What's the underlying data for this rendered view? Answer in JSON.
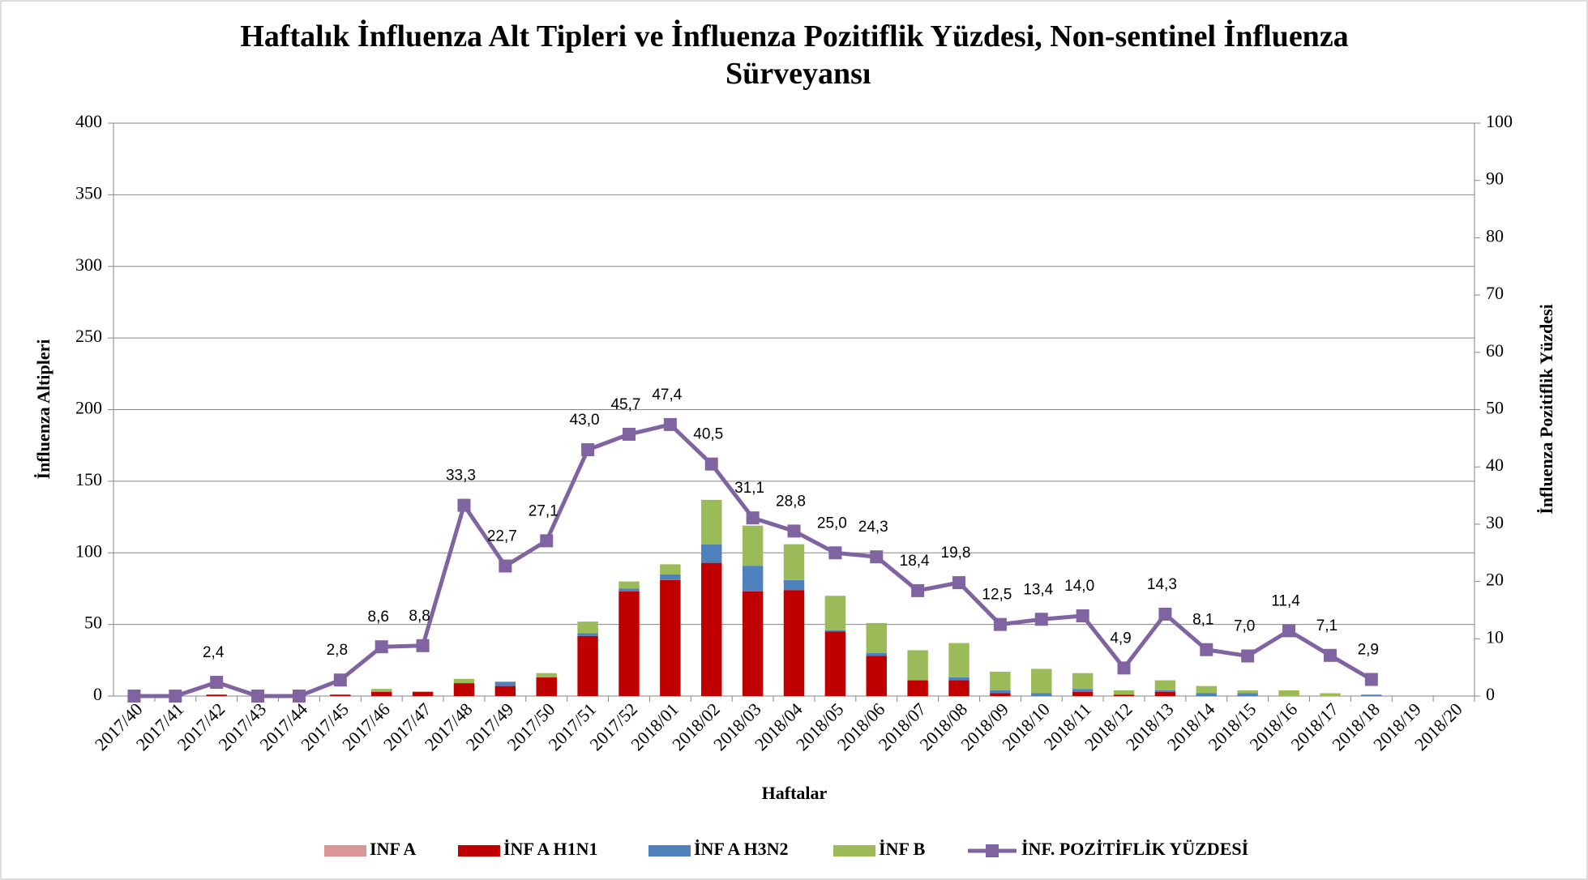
{
  "chart_data": {
    "type": "bar",
    "stacked": true,
    "title": "Haftalık İnfluenza Alt Tipleri ve İnfluenza Pozitiflik Yüzdesi, Non-sentinel İnfluenza Sürveyansı",
    "x_label": "Haftalar",
    "y_label": "İnfluenza Altipleri",
    "y2_label": "İnfluenza Pozitiflik Yüzdesi",
    "categories": [
      "2017/40",
      "2017/41",
      "2017/42",
      "2017/43",
      "2017/44",
      "2017/45",
      "2017/46",
      "2017/47",
      "2017/48",
      "2017/49",
      "2017/50",
      "2017/51",
      "2017/52",
      "2018/01",
      "2018/02",
      "2018/03",
      "2018/04",
      "2018/05",
      "2018/06",
      "2018/07",
      "2018/08",
      "2018/09",
      "2018/10",
      "2018/11",
      "2018/12",
      "2018/13",
      "2018/14",
      "2018/15",
      "2018/16",
      "2018/17",
      "2018/18",
      "2018/19",
      "2018/20"
    ],
    "series": [
      {
        "name": "INF A",
        "color": "#d99694",
        "values": [
          0,
          0,
          0,
          0,
          0,
          0,
          0,
          0,
          0,
          0,
          0,
          0,
          0,
          0,
          0,
          0,
          0,
          0,
          0,
          0,
          0,
          0,
          0,
          0,
          0,
          0,
          0,
          0,
          0,
          0,
          0,
          0,
          0
        ]
      },
      {
        "name": "İNF A H1N1",
        "color": "#c00000",
        "values": [
          0,
          0,
          1,
          0,
          0,
          1,
          3,
          3,
          9,
          7,
          13,
          42,
          73,
          81,
          93,
          73,
          74,
          45,
          28,
          11,
          11,
          2,
          0,
          3,
          1,
          3,
          0,
          0,
          0,
          0,
          0,
          0,
          0
        ]
      },
      {
        "name": "İNF A H3N2",
        "color": "#4f81bd",
        "values": [
          0,
          0,
          0,
          0,
          0,
          0,
          0,
          0,
          0,
          3,
          0,
          2,
          2,
          4,
          13,
          18,
          7,
          1,
          2,
          0,
          2,
          2,
          2,
          2,
          0,
          1,
          2,
          2,
          0,
          0,
          1,
          0,
          0
        ]
      },
      {
        "name": "İNF B",
        "color": "#9bbb59",
        "values": [
          0,
          0,
          0,
          0,
          0,
          0,
          2,
          0,
          3,
          0,
          3,
          8,
          5,
          7,
          31,
          28,
          25,
          24,
          21,
          21,
          24,
          13,
          17,
          11,
          3,
          7,
          5,
          2,
          4,
          2,
          0,
          0,
          0
        ]
      },
      {
        "name": "İNF. POZİTİFLİK YÜZDESİ",
        "color": "#8064a2",
        "type": "line",
        "axis": "y2",
        "values": [
          0,
          0,
          2.4,
          0,
          0,
          2.8,
          8.6,
          8.8,
          33.3,
          22.7,
          27.1,
          43.0,
          45.7,
          47.4,
          40.5,
          31.1,
          28.8,
          25.0,
          24.3,
          18.4,
          19.8,
          12.5,
          13.4,
          14.0,
          4.9,
          14.3,
          8.1,
          7.0,
          11.4,
          7.1,
          2.9,
          null,
          null
        ],
        "value_labels": [
          null,
          null,
          "2,4",
          null,
          null,
          "2,8",
          "8,6",
          "8,8",
          "33,3",
          "22,7",
          "27,1",
          "43,0",
          "45,7",
          "47,4",
          "40,5",
          "31,1",
          "28,8",
          "25,0",
          "24,3",
          "18,4",
          "19,8",
          "12,5",
          "13,4",
          "14,0",
          "4,9",
          "14,3",
          "8,1",
          "7,0",
          "11,4",
          "7,1",
          "2,9",
          null,
          null
        ]
      }
    ],
    "ylim": [
      0,
      400
    ],
    "yticks": [
      0,
      50,
      100,
      150,
      200,
      250,
      300,
      350,
      400
    ],
    "y2lim": [
      0,
      100
    ],
    "y2ticks": [
      0,
      10,
      20,
      30,
      40,
      50,
      60,
      70,
      80,
      90,
      100
    ],
    "grid": true,
    "legend": "bottom"
  }
}
